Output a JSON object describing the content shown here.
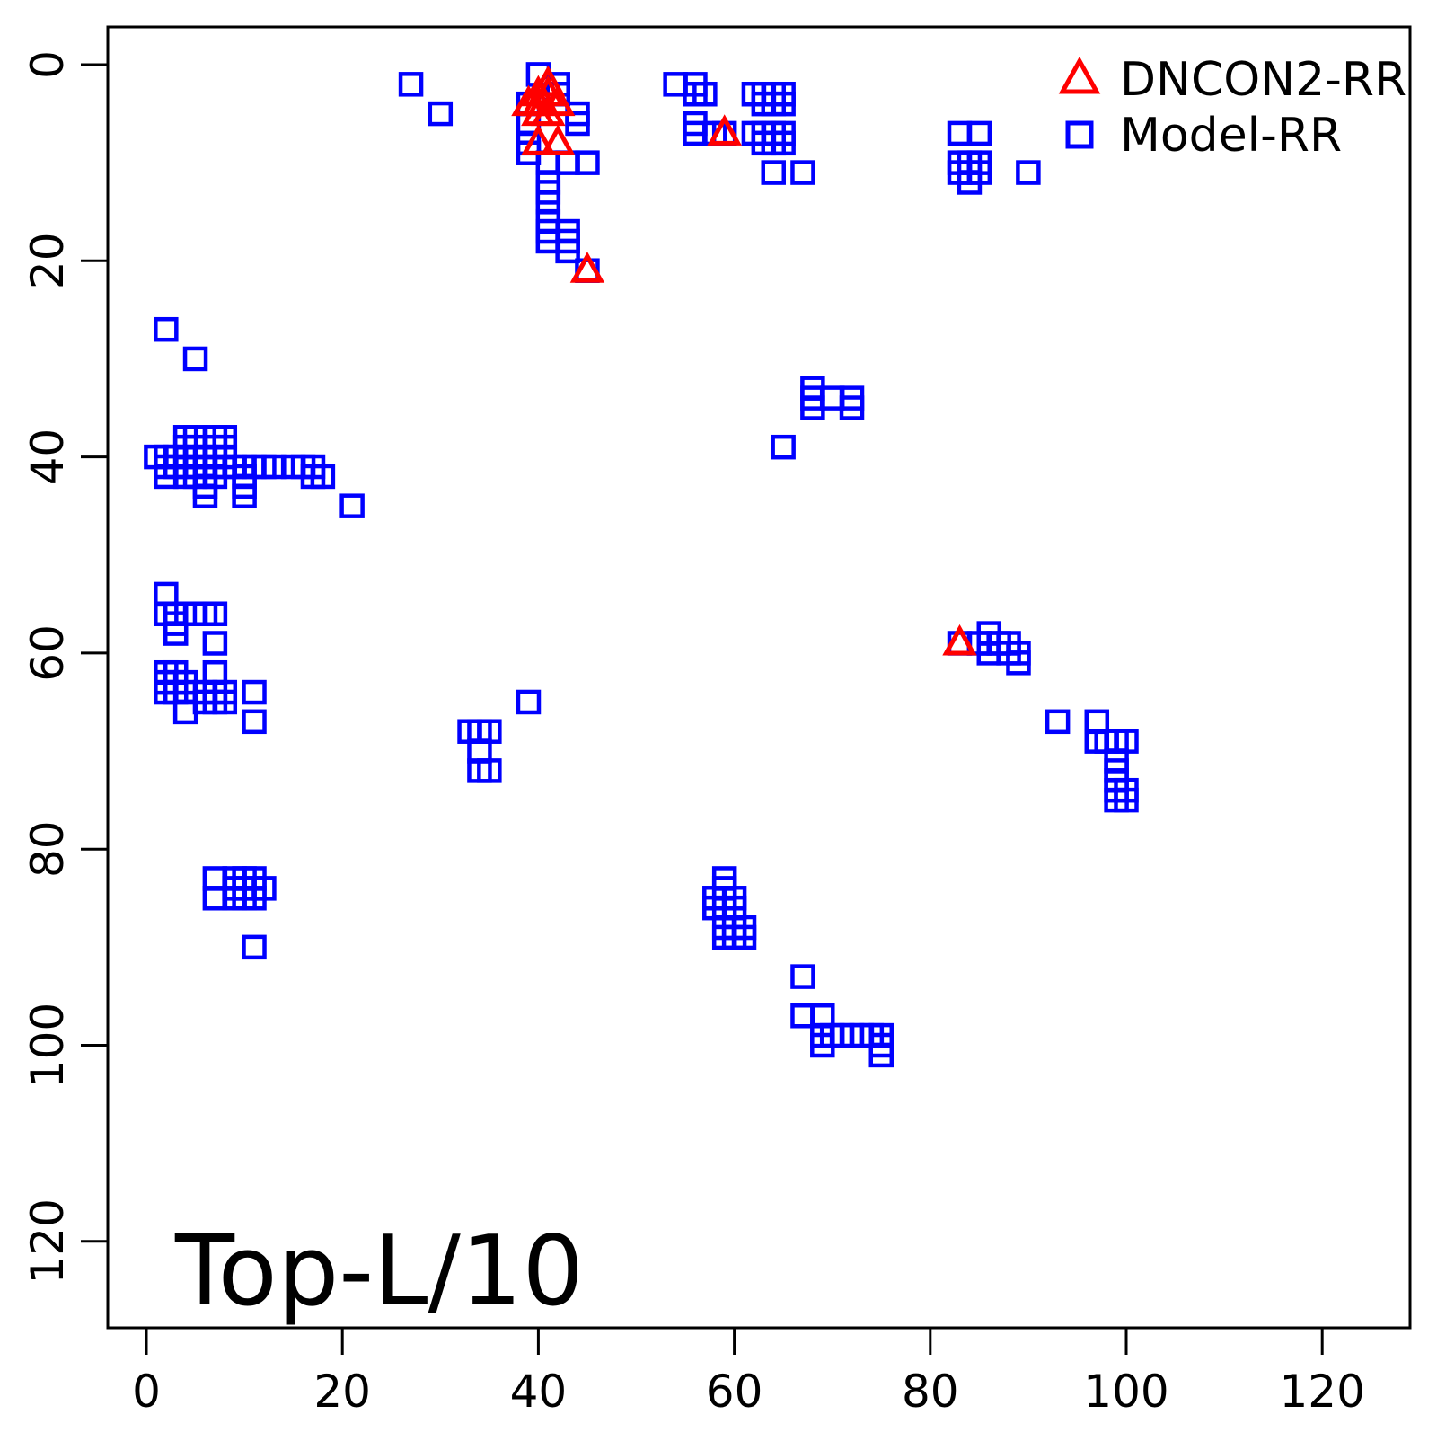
{
  "figure": {
    "title": "Top-L/10",
    "background": "#ffffff",
    "frame_color": "#000000"
  },
  "axes": {
    "x_ticks": [
      0,
      20,
      40,
      60,
      80,
      100,
      120
    ],
    "y_ticks": [
      0,
      20,
      40,
      60,
      80,
      100,
      120
    ]
  },
  "legend": [
    {
      "label": "DNCON2-RR",
      "marker": "triangle-icon",
      "color": "#FF0000"
    },
    {
      "label": "Model-RR",
      "marker": "square-icon",
      "color": "#0000FF"
    }
  ],
  "chart_data": {
    "type": "scatter",
    "title": "Top-L/10",
    "xlabel": "",
    "ylabel": "",
    "xlim": [
      0,
      128
    ],
    "ylim": [
      0,
      128
    ],
    "y_inverted": true,
    "grid": false,
    "legend_position": "top-right",
    "series": [
      {
        "name": "DNCON2-RR",
        "marker": "triangle",
        "color": "#FF0000",
        "points": [
          [
            41,
            2
          ],
          [
            40,
            3
          ],
          [
            41,
            3
          ],
          [
            39,
            4
          ],
          [
            40,
            4
          ],
          [
            42,
            4
          ],
          [
            40,
            5
          ],
          [
            41,
            5
          ],
          [
            40,
            8
          ],
          [
            42,
            8
          ],
          [
            45,
            21
          ],
          [
            59,
            7
          ],
          [
            83,
            59
          ]
        ]
      },
      {
        "name": "Model-RR",
        "marker": "square",
        "color": "#0000FF",
        "points": [
          [
            27,
            2
          ],
          [
            30,
            5
          ],
          [
            40,
            1
          ],
          [
            42,
            2
          ],
          [
            42,
            3
          ],
          [
            39,
            4
          ],
          [
            44,
            5
          ],
          [
            39,
            6
          ],
          [
            44,
            6
          ],
          [
            39,
            8
          ],
          [
            39,
            9
          ],
          [
            41,
            10
          ],
          [
            43,
            10
          ],
          [
            45,
            10
          ],
          [
            41,
            12
          ],
          [
            41,
            13
          ],
          [
            41,
            14
          ],
          [
            41,
            16
          ],
          [
            41,
            17
          ],
          [
            41,
            18
          ],
          [
            43,
            17
          ],
          [
            43,
            18
          ],
          [
            43,
            19
          ],
          [
            45,
            21
          ],
          [
            54,
            2
          ],
          [
            56,
            2
          ],
          [
            56,
            3
          ],
          [
            57,
            3
          ],
          [
            56,
            6
          ],
          [
            56,
            7
          ],
          [
            58,
            7
          ],
          [
            59,
            7
          ],
          [
            62,
            3
          ],
          [
            63,
            3
          ],
          [
            64,
            3
          ],
          [
            65,
            3
          ],
          [
            63,
            4
          ],
          [
            64,
            4
          ],
          [
            65,
            4
          ],
          [
            62,
            7
          ],
          [
            63,
            7
          ],
          [
            64,
            7
          ],
          [
            65,
            7
          ],
          [
            63,
            8
          ],
          [
            64,
            8
          ],
          [
            65,
            8
          ],
          [
            64,
            11
          ],
          [
            67,
            11
          ],
          [
            83,
            7
          ],
          [
            85,
            7
          ],
          [
            83,
            10
          ],
          [
            84,
            10
          ],
          [
            85,
            10
          ],
          [
            83,
            11
          ],
          [
            84,
            11
          ],
          [
            85,
            11
          ],
          [
            84,
            12
          ],
          [
            90,
            11
          ],
          [
            68,
            33
          ],
          [
            68,
            34
          ],
          [
            68,
            35
          ],
          [
            70,
            34
          ],
          [
            72,
            34
          ],
          [
            72,
            35
          ],
          [
            65,
            39
          ],
          [
            2,
            27
          ],
          [
            5,
            30
          ],
          [
            1,
            40
          ],
          [
            4,
            38
          ],
          [
            5,
            38
          ],
          [
            7,
            38
          ],
          [
            8,
            38
          ],
          [
            4,
            39
          ],
          [
            5,
            39
          ],
          [
            7,
            39
          ],
          [
            8,
            39
          ],
          [
            2,
            40
          ],
          [
            3,
            40
          ],
          [
            4,
            40
          ],
          [
            5,
            40
          ],
          [
            6,
            40
          ],
          [
            7,
            40
          ],
          [
            8,
            40
          ],
          [
            2,
            41
          ],
          [
            3,
            41
          ],
          [
            4,
            41
          ],
          [
            5,
            41
          ],
          [
            6,
            41
          ],
          [
            7,
            41
          ],
          [
            8,
            41
          ],
          [
            9,
            41
          ],
          [
            10,
            41
          ],
          [
            11,
            41
          ],
          [
            12,
            41
          ],
          [
            13,
            41
          ],
          [
            15,
            41
          ],
          [
            16,
            41
          ],
          [
            17,
            41
          ],
          [
            2,
            42
          ],
          [
            4,
            42
          ],
          [
            5,
            42
          ],
          [
            6,
            42
          ],
          [
            7,
            42
          ],
          [
            10,
            42
          ],
          [
            17,
            42
          ],
          [
            18,
            42
          ],
          [
            6,
            43
          ],
          [
            10,
            43
          ],
          [
            6,
            44
          ],
          [
            10,
            44
          ],
          [
            21,
            45
          ],
          [
            2,
            54
          ],
          [
            2,
            56
          ],
          [
            3,
            56
          ],
          [
            5,
            56
          ],
          [
            6,
            56
          ],
          [
            7,
            56
          ],
          [
            3,
            57
          ],
          [
            3,
            58
          ],
          [
            7,
            59
          ],
          [
            2,
            62
          ],
          [
            3,
            62
          ],
          [
            7,
            62
          ],
          [
            2,
            63
          ],
          [
            3,
            63
          ],
          [
            4,
            63
          ],
          [
            2,
            64
          ],
          [
            3,
            64
          ],
          [
            4,
            64
          ],
          [
            6,
            64
          ],
          [
            7,
            64
          ],
          [
            8,
            64
          ],
          [
            11,
            64
          ],
          [
            6,
            65
          ],
          [
            7,
            65
          ],
          [
            8,
            65
          ],
          [
            4,
            66
          ],
          [
            11,
            67
          ],
          [
            39,
            65
          ],
          [
            33,
            68
          ],
          [
            34,
            68
          ],
          [
            35,
            68
          ],
          [
            34,
            70
          ],
          [
            34,
            72
          ],
          [
            35,
            72
          ],
          [
            83,
            59
          ],
          [
            85,
            59
          ],
          [
            86,
            58
          ],
          [
            86,
            59
          ],
          [
            86,
            60
          ],
          [
            87,
            59
          ],
          [
            88,
            59
          ],
          [
            88,
            60
          ],
          [
            89,
            60
          ],
          [
            89,
            61
          ],
          [
            93,
            67
          ],
          [
            97,
            67
          ],
          [
            97,
            69
          ],
          [
            98,
            69
          ],
          [
            99,
            69
          ],
          [
            100,
            69
          ],
          [
            99,
            71
          ],
          [
            99,
            72
          ],
          [
            99,
            73
          ],
          [
            99,
            74
          ],
          [
            100,
            74
          ],
          [
            99,
            75
          ],
          [
            100,
            75
          ],
          [
            59,
            83
          ],
          [
            59,
            84
          ],
          [
            58,
            85
          ],
          [
            59,
            85
          ],
          [
            60,
            85
          ],
          [
            58,
            86
          ],
          [
            59,
            86
          ],
          [
            60,
            86
          ],
          [
            59,
            88
          ],
          [
            60,
            88
          ],
          [
            61,
            88
          ],
          [
            59,
            89
          ],
          [
            60,
            89
          ],
          [
            61,
            89
          ],
          [
            7,
            83
          ],
          [
            7,
            85
          ],
          [
            9,
            83
          ],
          [
            10,
            83
          ],
          [
            11,
            83
          ],
          [
            9,
            84
          ],
          [
            10,
            84
          ],
          [
            11,
            84
          ],
          [
            12,
            84
          ],
          [
            9,
            85
          ],
          [
            10,
            85
          ],
          [
            11,
            85
          ],
          [
            11,
            90
          ],
          [
            67,
            93
          ],
          [
            67,
            97
          ],
          [
            69,
            97
          ],
          [
            69,
            99
          ],
          [
            70,
            99
          ],
          [
            71,
            99
          ],
          [
            72,
            99
          ],
          [
            73,
            99
          ],
          [
            74,
            99
          ],
          [
            75,
            99
          ],
          [
            69,
            100
          ],
          [
            75,
            100
          ],
          [
            75,
            101
          ]
        ]
      }
    ]
  }
}
